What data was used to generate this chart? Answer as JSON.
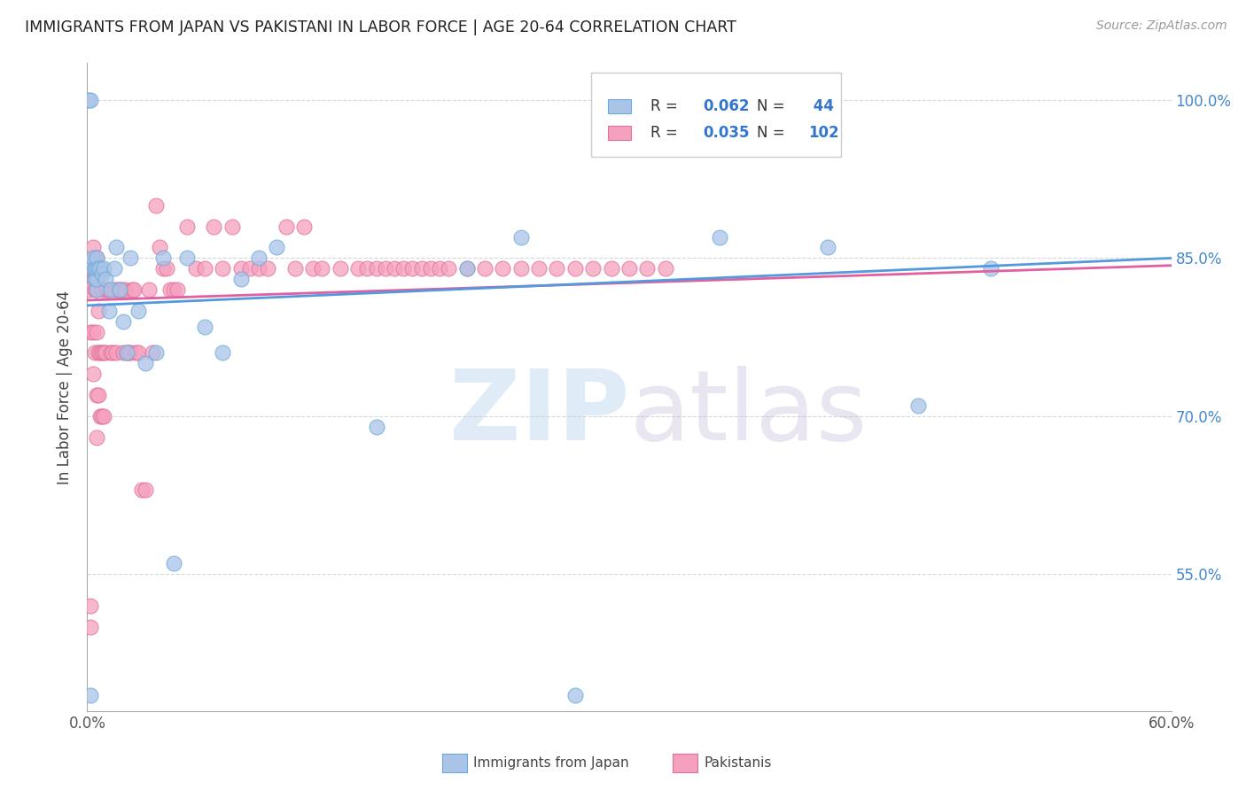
{
  "title": "IMMIGRANTS FROM JAPAN VS PAKISTANI IN LABOR FORCE | AGE 20-64 CORRELATION CHART",
  "source": "Source: ZipAtlas.com",
  "ylabel": "In Labor Force | Age 20-64",
  "xlim": [
    0.0,
    0.6
  ],
  "ylim": [
    0.42,
    1.035
  ],
  "xticks": [
    0.0,
    0.6
  ],
  "xticklabels": [
    "0.0%",
    "60.0%"
  ],
  "yticks": [
    0.55,
    0.7,
    0.85,
    1.0
  ],
  "yticklabels": [
    "55.0%",
    "70.0%",
    "85.0%",
    "100.0%"
  ],
  "japan_R": 0.062,
  "japan_N": 44,
  "pakistan_R": 0.035,
  "pakistan_N": 102,
  "japan_color": "#aac4e8",
  "pakistan_color": "#f5a0be",
  "japan_edge_color": "#6aaad8",
  "pakistan_edge_color": "#e0709a",
  "japan_line_color": "#5599dd",
  "pakistan_line_color": "#e060a0",
  "background_color": "#ffffff",
  "grid_color": "#cccccc",
  "japan_x": [
    0.001,
    0.002,
    0.002,
    0.003,
    0.003,
    0.003,
    0.004,
    0.004,
    0.005,
    0.005,
    0.005,
    0.005,
    0.006,
    0.007,
    0.008,
    0.009,
    0.01,
    0.012,
    0.013,
    0.015,
    0.016,
    0.018,
    0.02,
    0.022,
    0.024,
    0.028,
    0.032,
    0.038,
    0.042,
    0.048,
    0.055,
    0.065,
    0.075,
    0.085,
    0.095,
    0.105,
    0.16,
    0.21,
    0.24,
    0.27,
    0.35,
    0.41,
    0.46,
    0.5
  ],
  "japan_y": [
    1.0,
    1.0,
    0.435,
    0.84,
    0.845,
    0.85,
    0.83,
    0.84,
    0.82,
    0.83,
    0.84,
    0.85,
    0.84,
    0.84,
    0.835,
    0.84,
    0.83,
    0.8,
    0.82,
    0.84,
    0.86,
    0.82,
    0.79,
    0.76,
    0.85,
    0.8,
    0.75,
    0.76,
    0.85,
    0.56,
    0.85,
    0.785,
    0.76,
    0.83,
    0.85,
    0.86,
    0.69,
    0.84,
    0.87,
    0.435,
    0.87,
    0.86,
    0.71,
    0.84
  ],
  "pakistan_x": [
    0.001,
    0.001,
    0.002,
    0.002,
    0.002,
    0.002,
    0.003,
    0.003,
    0.003,
    0.003,
    0.004,
    0.004,
    0.004,
    0.004,
    0.004,
    0.005,
    0.005,
    0.005,
    0.005,
    0.005,
    0.006,
    0.006,
    0.006,
    0.006,
    0.007,
    0.007,
    0.007,
    0.008,
    0.008,
    0.008,
    0.009,
    0.009,
    0.01,
    0.01,
    0.011,
    0.012,
    0.013,
    0.014,
    0.015,
    0.016,
    0.017,
    0.018,
    0.019,
    0.02,
    0.021,
    0.022,
    0.023,
    0.024,
    0.025,
    0.026,
    0.027,
    0.028,
    0.03,
    0.032,
    0.034,
    0.036,
    0.038,
    0.04,
    0.042,
    0.044,
    0.046,
    0.048,
    0.05,
    0.055,
    0.06,
    0.065,
    0.07,
    0.075,
    0.08,
    0.085,
    0.09,
    0.095,
    0.1,
    0.11,
    0.115,
    0.12,
    0.125,
    0.13,
    0.14,
    0.15,
    0.155,
    0.16,
    0.165,
    0.17,
    0.175,
    0.18,
    0.185,
    0.19,
    0.195,
    0.2,
    0.21,
    0.22,
    0.23,
    0.24,
    0.25,
    0.26,
    0.27,
    0.28,
    0.29,
    0.3,
    0.31,
    0.32
  ],
  "pakistan_y": [
    0.82,
    0.84,
    0.5,
    0.52,
    0.78,
    0.84,
    0.74,
    0.78,
    0.84,
    0.86,
    0.76,
    0.82,
    0.83,
    0.84,
    0.85,
    0.68,
    0.72,
    0.78,
    0.82,
    0.85,
    0.72,
    0.76,
    0.8,
    0.84,
    0.7,
    0.76,
    0.84,
    0.7,
    0.76,
    0.82,
    0.7,
    0.76,
    0.76,
    0.82,
    0.82,
    0.82,
    0.76,
    0.76,
    0.82,
    0.76,
    0.82,
    0.82,
    0.82,
    0.76,
    0.82,
    0.76,
    0.76,
    0.76,
    0.82,
    0.82,
    0.76,
    0.76,
    0.63,
    0.63,
    0.82,
    0.76,
    0.9,
    0.86,
    0.84,
    0.84,
    0.82,
    0.82,
    0.82,
    0.88,
    0.84,
    0.84,
    0.88,
    0.84,
    0.88,
    0.84,
    0.84,
    0.84,
    0.84,
    0.88,
    0.84,
    0.88,
    0.84,
    0.84,
    0.84,
    0.84,
    0.84,
    0.84,
    0.84,
    0.84,
    0.84,
    0.84,
    0.84,
    0.84,
    0.84,
    0.84,
    0.84,
    0.84,
    0.84,
    0.84,
    0.84,
    0.84,
    0.84,
    0.84,
    0.84,
    0.84,
    0.84,
    0.84
  ],
  "trend_japan_x0": 0.0,
  "trend_japan_y0": 0.805,
  "trend_japan_x1": 0.6,
  "trend_japan_y1": 0.85,
  "trend_pakistan_x0": 0.0,
  "trend_pakistan_y0": 0.81,
  "trend_pakistan_x1": 0.6,
  "trend_pakistan_y1": 0.843
}
